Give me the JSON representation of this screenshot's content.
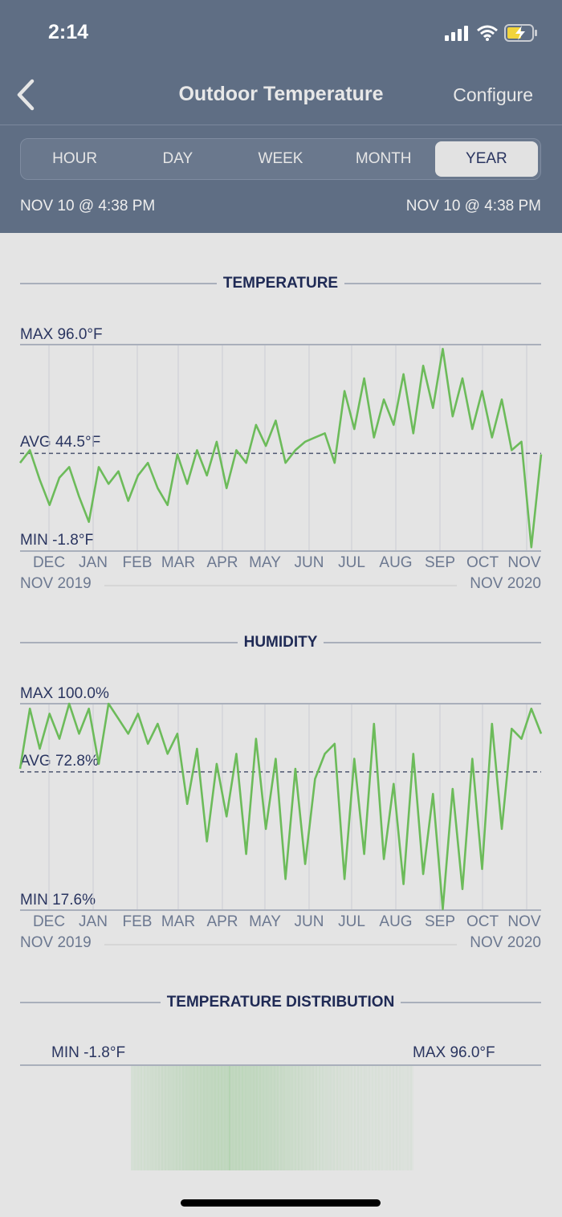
{
  "status_bar": {
    "time": "2:14",
    "icons": [
      "signal-icon",
      "wifi-icon",
      "battery-charging-icon"
    ]
  },
  "nav": {
    "back_icon": "chevron-left-icon",
    "title": "Outdoor Temperature",
    "configure_label": "Configure"
  },
  "segments": {
    "items": [
      "HOUR",
      "DAY",
      "WEEK",
      "MONTH",
      "YEAR"
    ],
    "active": "YEAR"
  },
  "range": {
    "start": "NOV 10 @ 4:38 PM",
    "end": "NOV 10 @ 4:38 PM"
  },
  "colors": {
    "header_bg": "#5f6e84",
    "body_bg": "#e4e4e4",
    "line_green": "#6cbb5a",
    "title_navy": "#1f2a55",
    "axis_gray": "#6c7890"
  },
  "temperature": {
    "title": "TEMPERATURE",
    "max_label": "MAX 96.0°F",
    "avg_label": "AVG 44.5°F",
    "min_label": "MIN -1.8°F",
    "months": [
      "DEC",
      "JAN",
      "FEB",
      "MAR",
      "APR",
      "MAY",
      "JUN",
      "JUL",
      "AUG",
      "SEP",
      "OCT",
      "NOV"
    ],
    "start_label": "NOV 2019",
    "end_label": "NOV 2020"
  },
  "humidity": {
    "title": "HUMIDITY",
    "max_label": "MAX 100.0%",
    "avg_label": "AVG 72.8%",
    "min_label": "MIN 17.6%",
    "months": [
      "DEC",
      "JAN",
      "FEB",
      "MAR",
      "APR",
      "MAY",
      "JUN",
      "JUL",
      "AUG",
      "SEP",
      "OCT",
      "NOV"
    ],
    "start_label": "NOV 2019",
    "end_label": "NOV 2020"
  },
  "distribution": {
    "title": "TEMPERATURE DISTRIBUTION",
    "min_label": "MIN -1.8°F",
    "max_label": "MAX 96.0°F"
  },
  "chart_data": [
    {
      "type": "line",
      "title": "TEMPERATURE",
      "xlabel": "",
      "ylabel": "°F",
      "ylim": [
        -1.8,
        96.0
      ],
      "avg": 44.5,
      "grid": true,
      "x": [
        "Nov 10 2019",
        "Nov 17",
        "Nov 24",
        "Dec 1",
        "Dec 8",
        "Dec 15",
        "Dec 22",
        "Dec 29",
        "Jan 5",
        "Jan 12",
        "Jan 19",
        "Jan 26",
        "Feb 2",
        "Feb 9",
        "Feb 16",
        "Feb 23",
        "Mar 1",
        "Mar 8",
        "Mar 15",
        "Mar 22",
        "Mar 29",
        "Apr 5",
        "Apr 12",
        "Apr 19",
        "Apr 26",
        "May 3",
        "May 10",
        "May 17",
        "May 24",
        "May 31",
        "Jun 7",
        "Jun 14",
        "Jun 21",
        "Jun 28",
        "Jul 5",
        "Jul 12",
        "Jul 19",
        "Jul 26",
        "Aug 2",
        "Aug 9",
        "Aug 16",
        "Aug 23",
        "Aug 30",
        "Sep 6",
        "Sep 13",
        "Sep 20",
        "Sep 27",
        "Oct 4",
        "Oct 11",
        "Oct 18",
        "Oct 25",
        "Nov 1",
        "Nov 5",
        "Nov 10 2020"
      ],
      "series": [
        {
          "name": "Outdoor Temperature",
          "values": [
            40,
            46,
            32,
            20,
            33,
            38,
            24,
            12,
            38,
            30,
            36,
            22,
            34,
            40,
            28,
            20,
            44,
            30,
            46,
            34,
            50,
            28,
            46,
            40,
            58,
            48,
            60,
            40,
            46,
            50,
            52,
            54,
            40,
            74,
            56,
            80,
            52,
            70,
            58,
            82,
            54,
            86,
            66,
            94,
            62,
            80,
            56,
            74,
            52,
            70,
            46,
            50,
            0,
            44
          ]
        }
      ]
    },
    {
      "type": "line",
      "title": "HUMIDITY",
      "xlabel": "",
      "ylabel": "%",
      "ylim": [
        17.6,
        100.0
      ],
      "avg": 72.8,
      "grid": true,
      "x": [
        "Nov 10 2019",
        "Nov 17",
        "Nov 24",
        "Dec 1",
        "Dec 8",
        "Dec 15",
        "Dec 22",
        "Dec 29",
        "Jan 5",
        "Jan 12",
        "Jan 19",
        "Jan 26",
        "Feb 2",
        "Feb 9",
        "Feb 16",
        "Feb 23",
        "Mar 1",
        "Mar 8",
        "Mar 15",
        "Mar 22",
        "Mar 29",
        "Apr 5",
        "Apr 12",
        "Apr 19",
        "Apr 26",
        "May 3",
        "May 10",
        "May 17",
        "May 24",
        "May 31",
        "Jun 7",
        "Jun 14",
        "Jun 21",
        "Jun 28",
        "Jul 5",
        "Jul 12",
        "Jul 19",
        "Jul 26",
        "Aug 2",
        "Aug 9",
        "Aug 16",
        "Aug 23",
        "Aug 30",
        "Sep 6",
        "Sep 13",
        "Sep 20",
        "Sep 27",
        "Oct 4",
        "Oct 11",
        "Oct 18",
        "Oct 25",
        "Nov 1",
        "Nov 5",
        "Nov 10 2020"
      ],
      "series": [
        {
          "name": "Humidity",
          "values": [
            74,
            98,
            82,
            96,
            86,
            100,
            88,
            98,
            76,
            100,
            94,
            88,
            96,
            84,
            92,
            80,
            88,
            60,
            82,
            45,
            76,
            55,
            80,
            40,
            86,
            50,
            78,
            30,
            74,
            36,
            70,
            80,
            84,
            30,
            78,
            40,
            92,
            38,
            68,
            28,
            80,
            32,
            64,
            18,
            66,
            26,
            78,
            34,
            92,
            50,
            90,
            86,
            98,
            88
          ]
        }
      ]
    },
    {
      "type": "heatmap",
      "title": "TEMPERATURE DISTRIBUTION",
      "xlim": [
        -1.8,
        96.0
      ],
      "x_labels": [
        "MIN -1.8°F",
        "MAX 96.0°F"
      ],
      "note": "green density band spans approx 12°F to 75°F, peak density near 32°F"
    }
  ]
}
